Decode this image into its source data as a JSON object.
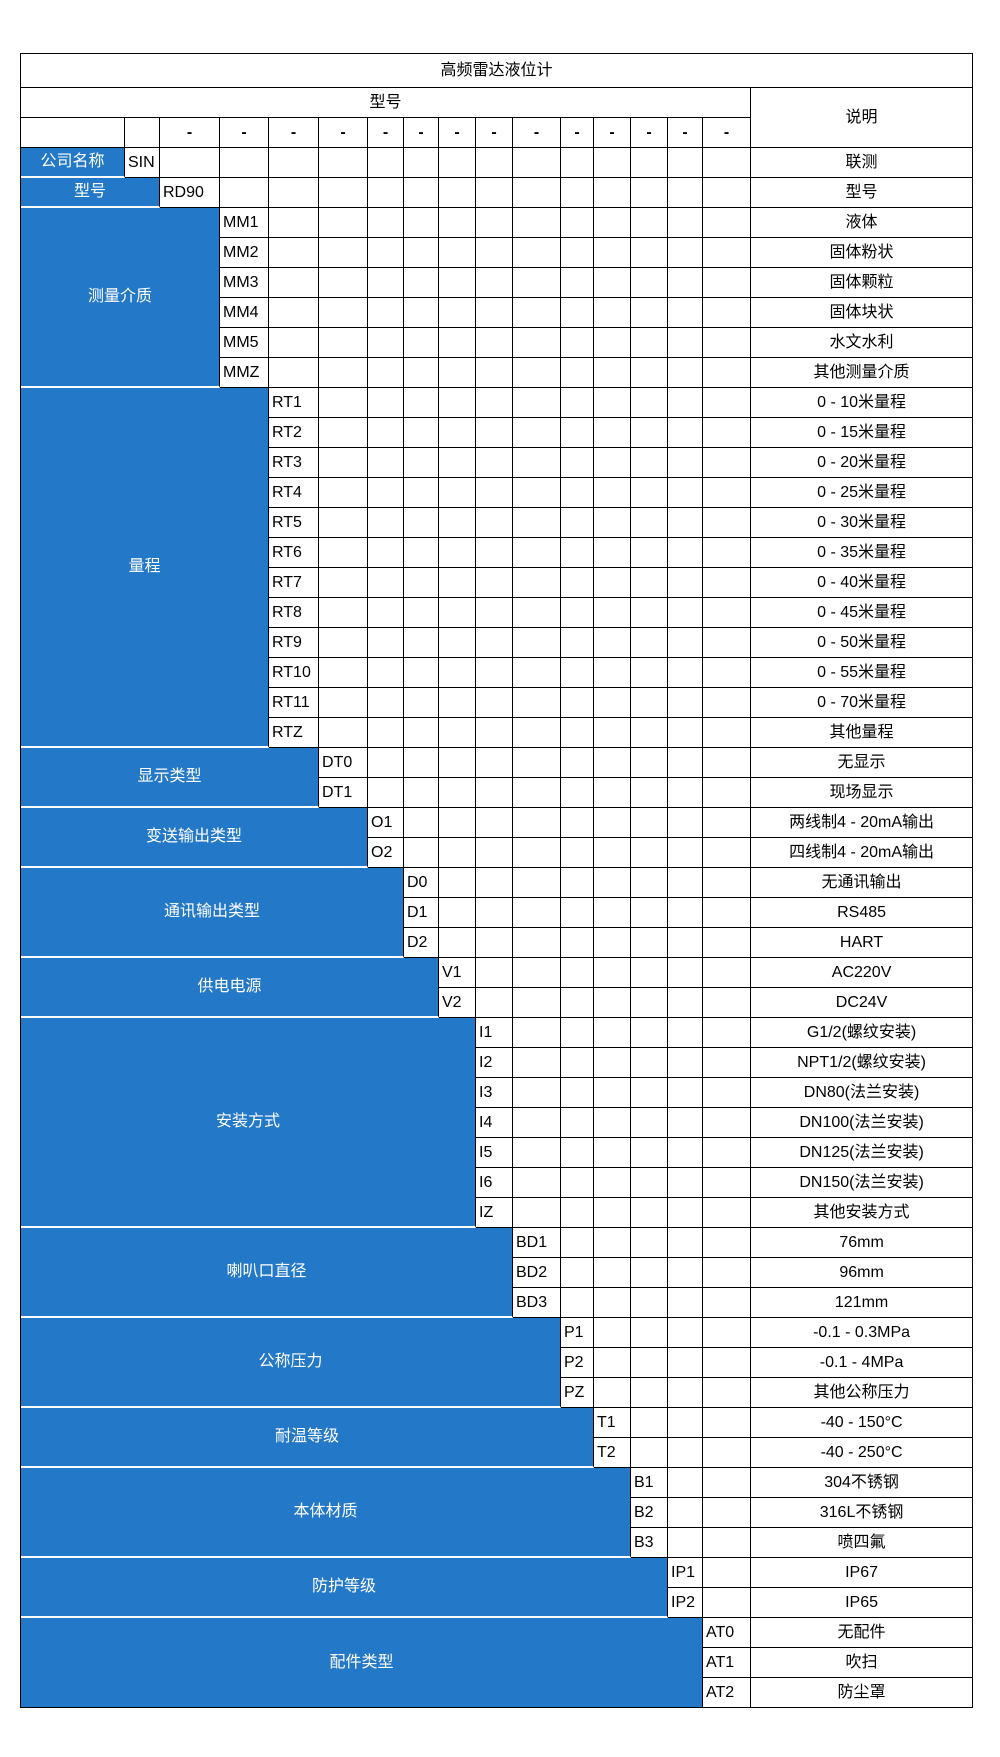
{
  "title": "高频雷达液位计",
  "header": {
    "model_label": "型号",
    "description_label": "说明",
    "separator": "-"
  },
  "colors": {
    "category_bg": "#2478c8",
    "category_text": "#ffffff",
    "grid_border": "#000000"
  },
  "categories": [
    {
      "label": "公司名称",
      "options": [
        {
          "code": "SIN",
          "description": "联测"
        }
      ]
    },
    {
      "label": "型号",
      "options": [
        {
          "code": "RD90",
          "description": "型号"
        }
      ]
    },
    {
      "label": "测量介质",
      "options": [
        {
          "code": "MM1",
          "description": "液体"
        },
        {
          "code": "MM2",
          "description": "固体粉状"
        },
        {
          "code": "MM3",
          "description": "固体颗粒"
        },
        {
          "code": "MM4",
          "description": "固体块状"
        },
        {
          "code": "MM5",
          "description": "水文水利"
        },
        {
          "code": "MMZ",
          "description": "其他测量介质"
        }
      ]
    },
    {
      "label": "量程",
      "options": [
        {
          "code": "RT1",
          "description": "0 - 10米量程"
        },
        {
          "code": "RT2",
          "description": "0 - 15米量程"
        },
        {
          "code": "RT3",
          "description": "0 - 20米量程"
        },
        {
          "code": "RT4",
          "description": "0 - 25米量程"
        },
        {
          "code": "RT5",
          "description": "0 - 30米量程"
        },
        {
          "code": "RT6",
          "description": "0 - 35米量程"
        },
        {
          "code": "RT7",
          "description": "0 - 40米量程"
        },
        {
          "code": "RT8",
          "description": "0 - 45米量程"
        },
        {
          "code": "RT9",
          "description": "0 - 50米量程"
        },
        {
          "code": "RT10",
          "description": "0 - 55米量程"
        },
        {
          "code": "RT11",
          "description": "0 - 70米量程"
        },
        {
          "code": "RTZ",
          "description": "其他量程"
        }
      ]
    },
    {
      "label": "显示类型",
      "options": [
        {
          "code": "DT0",
          "description": "无显示"
        },
        {
          "code": "DT1",
          "description": "现场显示"
        }
      ]
    },
    {
      "label": "变送输出类型",
      "options": [
        {
          "code": "O1",
          "description": "两线制4 - 20mA输出"
        },
        {
          "code": "O2",
          "description": "四线制4 - 20mA输出"
        }
      ]
    },
    {
      "label": "通讯输出类型",
      "options": [
        {
          "code": "D0",
          "description": "无通讯输出"
        },
        {
          "code": "D1",
          "description": "RS485"
        },
        {
          "code": "D2",
          "description": "HART"
        }
      ]
    },
    {
      "label": "供电电源",
      "options": [
        {
          "code": "V1",
          "description": "AC220V"
        },
        {
          "code": "V2",
          "description": "DC24V"
        }
      ]
    },
    {
      "label": "安装方式",
      "options": [
        {
          "code": "I1",
          "description": "G1/2(螺纹安装)"
        },
        {
          "code": "I2",
          "description": "NPT1/2(螺纹安装)"
        },
        {
          "code": "I3",
          "description": "DN80(法兰安装)"
        },
        {
          "code": "I4",
          "description": "DN100(法兰安装)"
        },
        {
          "code": "I5",
          "description": "DN125(法兰安装)"
        },
        {
          "code": "I6",
          "description": "DN150(法兰安装)"
        },
        {
          "code": "IZ",
          "description": "其他安装方式"
        }
      ]
    },
    {
      "label": "喇叭口直径",
      "options": [
        {
          "code": "BD1",
          "description": "76mm"
        },
        {
          "code": "BD2",
          "description": "96mm"
        },
        {
          "code": "BD3",
          "description": "121mm"
        }
      ]
    },
    {
      "label": "公称压力",
      "options": [
        {
          "code": "P1",
          "description": "-0.1 - 0.3MPa"
        },
        {
          "code": "P2",
          "description": "-0.1 - 4MPa"
        },
        {
          "code": "PZ",
          "description": "其他公称压力"
        }
      ]
    },
    {
      "label": "耐温等级",
      "options": [
        {
          "code": "T1",
          "description": "-40 - 150°C"
        },
        {
          "code": "T2",
          "description": "-40 - 250°C"
        }
      ]
    },
    {
      "label": "本体材质",
      "options": [
        {
          "code": "B1",
          "description": "304不锈钢"
        },
        {
          "code": "B2",
          "description": "316L不锈钢"
        },
        {
          "code": "B3",
          "description": "喷四氟"
        }
      ]
    },
    {
      "label": "防护等级",
      "options": [
        {
          "code": "IP1",
          "description": "IP67"
        },
        {
          "code": "IP2",
          "description": "IP65"
        }
      ]
    },
    {
      "label": "配件类型",
      "options": [
        {
          "code": "AT0",
          "description": "无配件"
        },
        {
          "code": "AT1",
          "description": "吹扫"
        },
        {
          "code": "AT2",
          "description": "防尘罩"
        }
      ]
    }
  ]
}
